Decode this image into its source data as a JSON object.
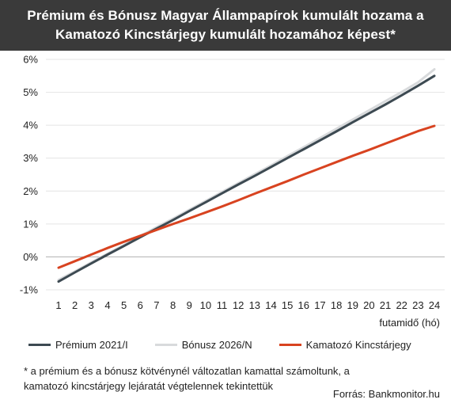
{
  "title": {
    "line1": "Prémium és Bónusz Magyar Állampapírok kumulált hozama a",
    "line2": "Kamatozó Kincstárjegy kumulált hozamához képest*"
  },
  "footnote": {
    "line1": "* a prémium és a bónusz kötvénynél változatlan kamattal számoltunk, a",
    "line2": "kamatozó kincstárjegy lejáratát végtelennek tekintettük"
  },
  "source": "Forrás: Bankmonitor.hu",
  "chart_data": {
    "type": "line",
    "title": "Prémium és Bónusz Magyar Állampapírok kumulált hozama a Kamatozó Kincstárjegy kumulált hozamához képest*",
    "xlabel": "futamidő (hó)",
    "ylabel": "",
    "x": [
      1,
      2,
      3,
      4,
      5,
      6,
      7,
      8,
      9,
      10,
      11,
      12,
      13,
      14,
      15,
      16,
      17,
      18,
      19,
      20,
      21,
      22,
      23,
      24
    ],
    "ylim": [
      -1,
      6
    ],
    "yticks": [
      "-1%",
      "0%",
      "1%",
      "2%",
      "3%",
      "4%",
      "5%",
      "6%"
    ],
    "grid": "horizontal",
    "legend_position": "bottom",
    "series": [
      {
        "name": "Prémium 2021/I",
        "color": "#3d4a52",
        "values": [
          -0.75,
          -0.47,
          -0.2,
          0.07,
          0.33,
          0.6,
          0.86,
          1.12,
          1.39,
          1.66,
          1.93,
          2.2,
          2.46,
          2.73,
          3.0,
          3.27,
          3.54,
          3.81,
          4.09,
          4.36,
          4.63,
          4.91,
          5.2,
          5.5
        ]
      },
      {
        "name": "Bónusz 2026/N",
        "color": "#d8dadc",
        "values": [
          -0.7,
          -0.44,
          -0.17,
          0.1,
          0.36,
          0.63,
          0.9,
          1.16,
          1.43,
          1.7,
          1.97,
          2.24,
          2.51,
          2.78,
          3.06,
          3.33,
          3.61,
          3.89,
          4.17,
          4.45,
          4.73,
          5.01,
          5.3,
          5.7
        ]
      },
      {
        "name": "Kamatozó Kincstárjegy",
        "color": "#d84320",
        "values": [
          -0.33,
          -0.13,
          0.07,
          0.27,
          0.46,
          0.64,
          0.82,
          1.0,
          1.17,
          1.35,
          1.53,
          1.72,
          1.92,
          2.11,
          2.3,
          2.5,
          2.69,
          2.88,
          3.07,
          3.25,
          3.44,
          3.63,
          3.82,
          3.98
        ]
      }
    ]
  }
}
